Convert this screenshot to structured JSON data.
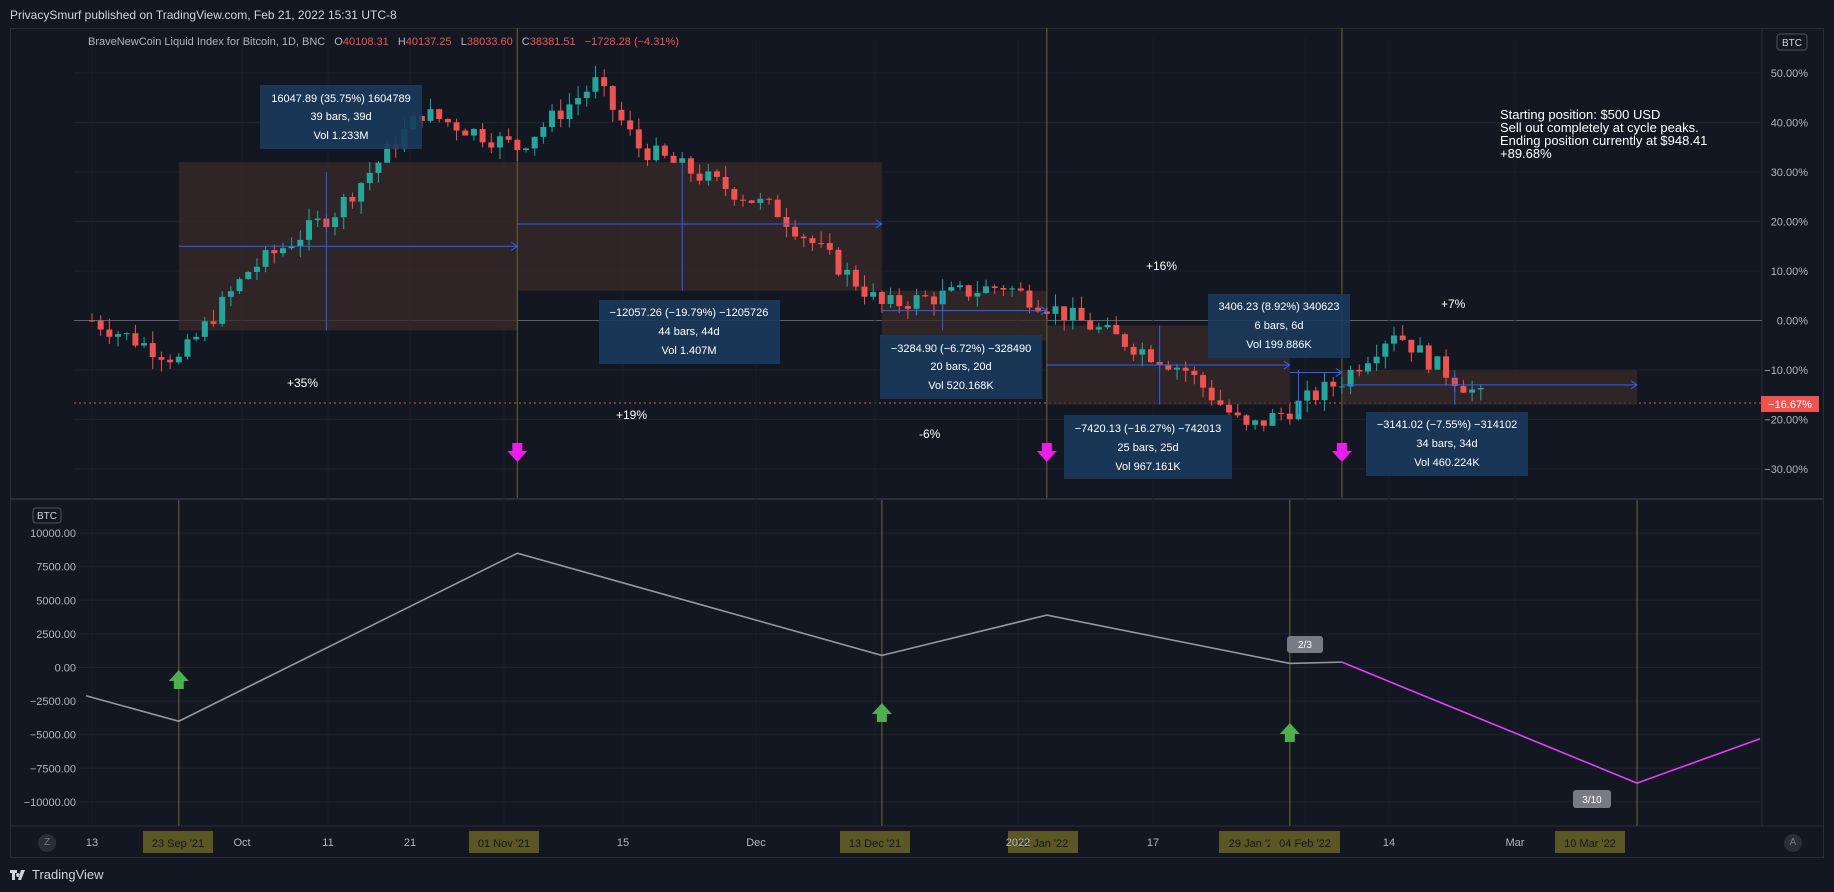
{
  "header": {
    "publisher_line": "PrivacySmurf published on TradingView.com, Feb 21, 2022 15:31 UTC-8"
  },
  "legend": {
    "symbol": "BraveNewCoin Liquid Index for Bitcoin, 1D, BNC",
    "open_label": "O",
    "open": "40108.31",
    "high_label": "H",
    "high": "40137.25",
    "low_label": "L",
    "low": "38033.60",
    "close_label": "C",
    "close": "38381.51",
    "change": "−1728.28 (−4.31%)"
  },
  "main_scale_badge": "BTC",
  "lower_scale_badge": "BTC",
  "current_value_tag": "−16.67%",
  "notes": [
    "Starting position: $500 USD",
    "Sell out completely at cycle peaks.",
    "Ending position currently at $948.41",
    "+89.68%"
  ],
  "cycle_labels": [
    {
      "text": "+35%"
    },
    {
      "text": "+19%"
    },
    {
      "text": "-6%"
    },
    {
      "text": "+16%"
    },
    {
      "text": "+7%"
    }
  ],
  "measurements": [
    {
      "line1": "16047.89 (35.75%) 1604789",
      "line2": "39 bars, 39d",
      "line3": "Vol 1.233M"
    },
    {
      "line1": "−12057.26 (−19.79%) −1205726",
      "line2": "44 bars, 44d",
      "line3": "Vol 1.407M"
    },
    {
      "line1": "−3284.90 (−6.72%) −328490",
      "line2": "20 bars, 20d",
      "line3": "Vol 520.168K"
    },
    {
      "line1": "−7420.13 (−16.27%) −742013",
      "line2": "25 bars, 25d",
      "line3": "Vol 967.161K"
    },
    {
      "line1": "3406.23 (8.92%) 340623",
      "line2": "6 bars, 6d",
      "line3": "Vol 199.886K"
    },
    {
      "line1": "−3141.02 (−7.55%) −314102",
      "line2": "34 bars, 34d",
      "line3": "Vol 460.224K"
    }
  ],
  "markers": {
    "sell_icon": "magenta-down-arrow-icon",
    "buy_icon": "green-up-arrow-icon",
    "tooltip_a": "2/3",
    "tooltip_b": "3/10"
  },
  "x_axis": {
    "ticks": [
      "13",
      "Oct",
      "11",
      "21",
      "15",
      "Dec",
      "2022",
      "17",
      "14",
      "Mar"
    ],
    "date_badges": [
      "23 Sep '21",
      "01 Nov '21",
      "13 Dec '21",
      "01 Jan '22",
      "29 Jan '22",
      "04 Feb '22",
      "10 Mar '22"
    ],
    "left_button": "Z",
    "right_button": "A"
  },
  "footer": {
    "brand": "TradingView"
  },
  "colors": {
    "background": "#131722",
    "bull": "#26a69a",
    "bear": "#ef5350",
    "range_fill": "#3a2a28",
    "measure_box": "#1b3a5c",
    "measure_arrow": "#2962ff",
    "cycle_line": "#5d5a2e",
    "sell_arrow": "#e91ee9",
    "buy_arrow": "#4caf50",
    "equity_line": "#9598a1",
    "projection_line": "#e040fb"
  },
  "chart_data": [
    {
      "type": "line",
      "title": "",
      "description_scale": "percentage",
      "y_ticks": [
        "50.00%",
        "40.00%",
        "30.00%",
        "20.00%",
        "10.00%",
        "0.00%",
        "−10.00%",
        "−20.00%",
        "−30.00%"
      ],
      "ylim": [
        -35,
        55
      ],
      "dates": [
        "2021-09-13",
        "2021-09-23",
        "2021-10-01",
        "2021-10-11",
        "2021-10-21",
        "2021-11-01",
        "2021-11-10",
        "2021-11-15",
        "2021-12-01",
        "2021-12-13",
        "2021-12-27",
        "2022-01-01",
        "2022-01-17",
        "2022-01-24",
        "2022-01-29",
        "2022-02-04",
        "2022-02-10",
        "2022-02-14",
        "2022-02-21"
      ],
      "values": [
        0,
        -8,
        10,
        22,
        42,
        35,
        48,
        35,
        22,
        3,
        7,
        3,
        -10,
        -22,
        -18,
        -12,
        -2,
        -8,
        -16.67
      ],
      "annotations": [
        "+35%",
        "+19%",
        "-6%",
        "+16%",
        "+7%"
      ]
    },
    {
      "type": "line",
      "title": "",
      "y_ticks": [
        "10000.00",
        "7500.00",
        "5000.00",
        "2500.00",
        "0.00",
        "−2500.00",
        "−5000.00",
        "−7500.00",
        "−10000.00"
      ],
      "ylim": [
        -11000,
        11000
      ],
      "series": [
        {
          "x": [
            "2021-09-13",
            "2021-09-23",
            "2021-11-01",
            "2021-12-13",
            "2022-01-01",
            "2022-01-29",
            "2022-02-04"
          ],
          "values": [
            -2100,
            -4000,
            8500,
            900,
            3900,
            300,
            400
          ]
        },
        {
          "x": [
            "2022-02-04",
            "2022-03-10",
            "2022-04-10"
          ],
          "values": [
            400,
            -8600,
            -5300
          ]
        }
      ]
    }
  ]
}
